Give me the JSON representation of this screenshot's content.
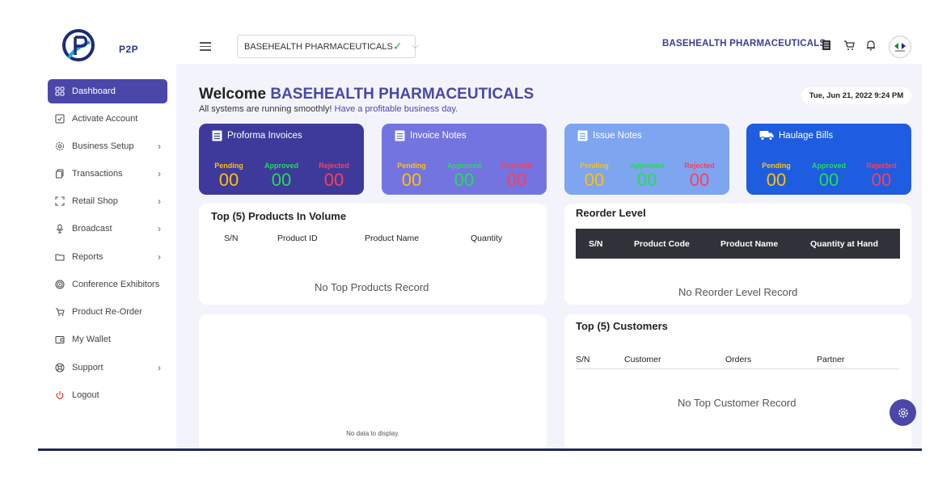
{
  "brand": {
    "logo_text": "P2P"
  },
  "header": {
    "company_select_value": "BASEHEALTH PHARMACEUTICALS",
    "company_name": "BASEHEALTH PHARMACEUTICALS"
  },
  "sidebar": {
    "items": [
      {
        "label": "Dashboard",
        "icon": "dashboard-icon",
        "active": true,
        "has_arrow": false
      },
      {
        "label": "Activate Account",
        "icon": "check-square-icon",
        "has_arrow": false
      },
      {
        "label": "Business Setup",
        "icon": "gear-icon",
        "has_arrow": true
      },
      {
        "label": "Transactions",
        "icon": "copy-icon",
        "has_arrow": true
      },
      {
        "label": "Retail Shop",
        "icon": "scan-icon",
        "has_arrow": true
      },
      {
        "label": "Broadcast",
        "icon": "microphone-icon",
        "has_arrow": true
      },
      {
        "label": "Reports",
        "icon": "folder-icon",
        "has_arrow": true
      },
      {
        "label": "Conference Exhibitors",
        "icon": "target-icon",
        "has_arrow": false
      },
      {
        "label": "Product Re-Order",
        "icon": "cart-icon",
        "has_arrow": false
      },
      {
        "label": "My Wallet",
        "icon": "wallet-icon",
        "has_arrow": false
      },
      {
        "label": "Support",
        "icon": "lifebuoy-icon",
        "has_arrow": true
      },
      {
        "label": "Logout",
        "icon": "power-icon",
        "has_arrow": false
      }
    ],
    "arrow_glyph": "›"
  },
  "welcome": {
    "prefix": "Welcome",
    "company": "BASEHEALTH PHARMACEUTICALS",
    "subtitle_plain": "All systems are running smoothly!",
    "subtitle_highlight": "Have a profitable business day."
  },
  "datetime": "Tue, Jun 21, 2022 9:24 PM",
  "cards": [
    {
      "title": "Proforma Invoices",
      "icon": "document-icon",
      "color": "#3d3a9b",
      "pending": "00",
      "approved": "00",
      "rejected": "00"
    },
    {
      "title": "Invoice Notes",
      "icon": "document-icon",
      "color": "#7474e0",
      "pending": "00",
      "approved": "00",
      "rejected": "00"
    },
    {
      "title": "Issue Notes",
      "icon": "document-icon",
      "color": "#7ea5ef",
      "pending": "00",
      "approved": "00",
      "rejected": "00"
    },
    {
      "title": "Haulage Bills",
      "icon": "truck-icon",
      "color": "#1e5de0",
      "pending": "00",
      "approved": "00",
      "rejected": "00"
    }
  ],
  "stat_labels": {
    "pending": "Pending",
    "approved": "Approved",
    "rejected": "Rejected"
  },
  "top_products": {
    "title": "Top (5) Products In Volume",
    "columns": [
      "S/N",
      "Product ID",
      "Product Name",
      "Quantity"
    ],
    "empty": "No Top Products Record"
  },
  "chart_panel": {
    "empty": "No data to display."
  },
  "reorder": {
    "title": "Reorder Level",
    "columns": [
      "S/N",
      "Product Code",
      "Product Name",
      "Quantity at Hand"
    ],
    "empty": "No Reorder Level Record"
  },
  "customers": {
    "title": "Top (5) Customers",
    "columns": [
      "S/N",
      "Customer",
      "Orders",
      "Partner"
    ],
    "empty": "No Top Customer Record"
  },
  "colors": {
    "accent": "#4b47a8",
    "pending": "#ffc107",
    "approved": "#22dd55",
    "rejected": "#ff3d5a"
  }
}
